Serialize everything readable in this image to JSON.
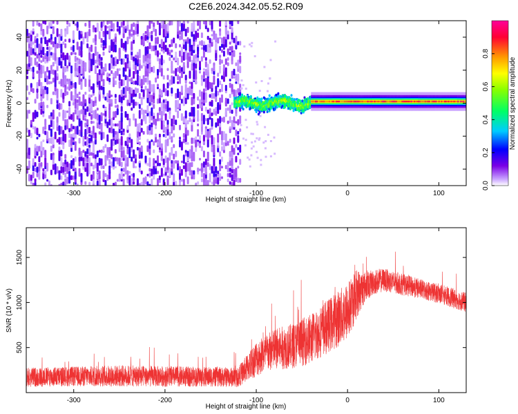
{
  "title": "C2E6.2024.342.05.52.R09",
  "chart_data": [
    {
      "type": "heatmap",
      "xlabel": "Height of straight line (km)",
      "ylabel": "Frequency (Hz)",
      "xlim": [
        -352,
        130
      ],
      "ylim": [
        -50,
        50
      ],
      "x_ticks": [
        -300,
        -200,
        -100,
        0,
        100
      ],
      "y_ticks": [
        -40,
        -20,
        0,
        20,
        40
      ],
      "colorbar": {
        "label": "Normalized spectral amplitude",
        "range": [
          0,
          1
        ],
        "ticks": [
          "0.0",
          "0.2",
          "0.4",
          "0.6",
          "0.8"
        ],
        "colors": [
          "#ffffff",
          "#7a00e6",
          "#0000ff",
          "#00ccff",
          "#00ff66",
          "#88ff00",
          "#ffff00",
          "#ff9900",
          "#ff0033",
          "#ff0099"
        ]
      },
      "regions": [
        {
          "name": "noise",
          "x_range": [
            -352,
            -118
          ],
          "freq_range": [
            -50,
            50
          ],
          "amplitude": 0.1
        },
        {
          "name": "turbulent_band",
          "x_range": [
            -125,
            -40
          ],
          "freq_center": 0,
          "freq_halfwidth": 6,
          "amplitude": 0.55
        },
        {
          "name": "stable_band",
          "x_range": [
            -40,
            130
          ],
          "freq_center": 1,
          "freq_halfwidth": 3,
          "amplitude": 0.85
        }
      ]
    },
    {
      "type": "line",
      "xlabel": "Height of straight line (km)",
      "ylabel": "SNR (10 * v/v)",
      "xlim": [
        -352,
        130
      ],
      "ylim": [
        0,
        1830
      ],
      "x_ticks": [
        -300,
        -200,
        -100,
        0,
        100
      ],
      "y_ticks": [
        500,
        1000,
        1500
      ],
      "color": "#ee3333",
      "series": [
        {
          "x": [
            -350,
            -300,
            -250,
            -200,
            -150,
            -120,
            -100,
            -80,
            -60,
            -40,
            -20,
            0,
            10,
            20,
            30,
            40,
            60,
            80,
            100,
            130
          ],
          "y": [
            170,
            180,
            185,
            180,
            175,
            170,
            380,
            480,
            520,
            600,
            750,
            900,
            1100,
            1180,
            1230,
            1250,
            1200,
            1150,
            1100,
            1000
          ],
          "spread": [
            110,
            110,
            120,
            115,
            110,
            110,
            200,
            230,
            250,
            280,
            300,
            330,
            280,
            160,
            140,
            130,
            120,
            110,
            110,
            110
          ]
        }
      ]
    }
  ]
}
